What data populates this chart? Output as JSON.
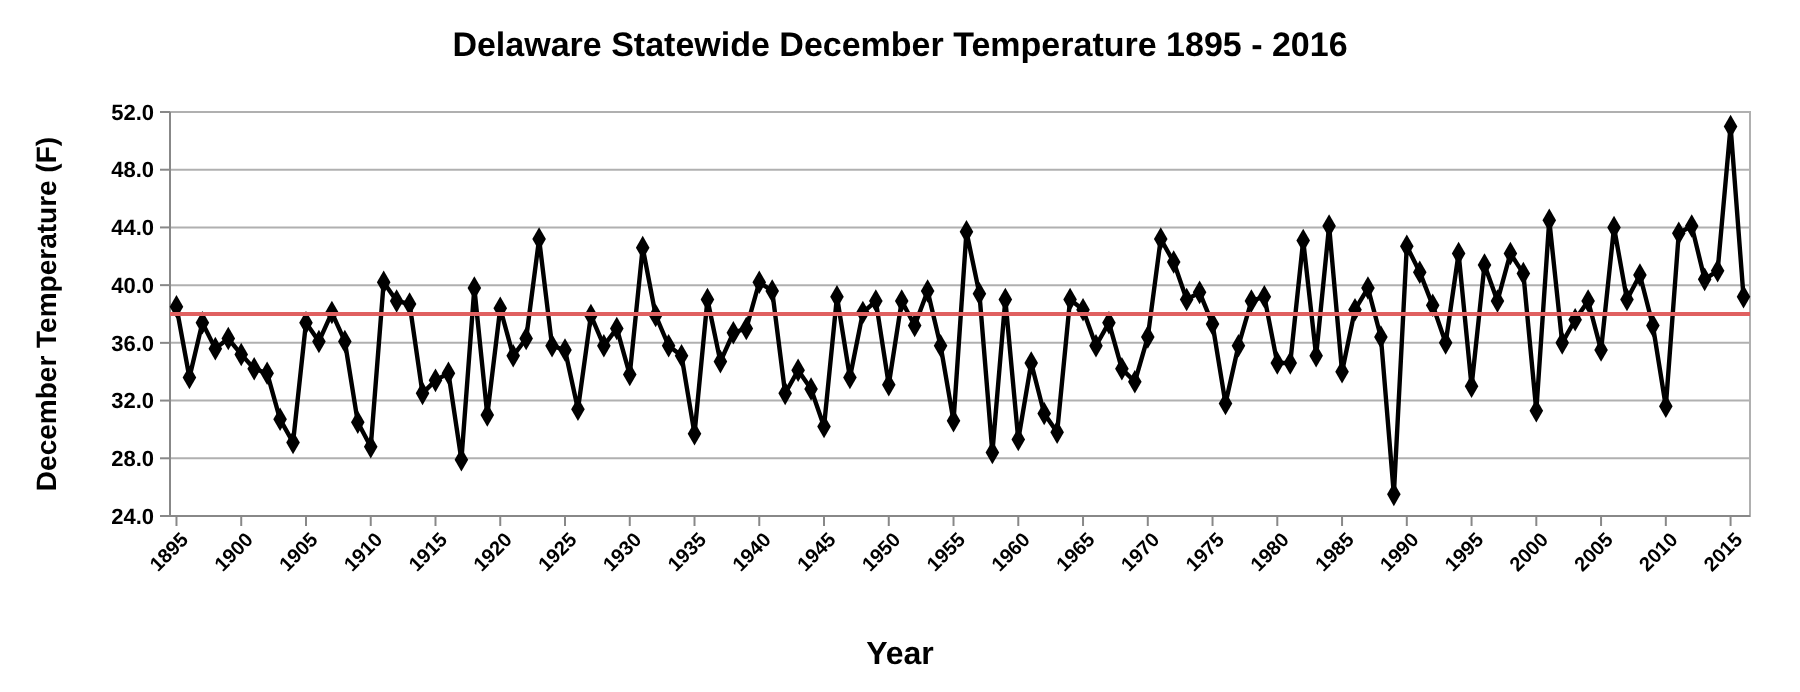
{
  "chart_data": {
    "type": "line",
    "title": "Delaware Statewide December Temperature 1895 - 2016",
    "xlabel": "Year",
    "ylabel": "December Temperature (F)",
    "x": [
      1895,
      1896,
      1897,
      1898,
      1899,
      1900,
      1901,
      1902,
      1903,
      1904,
      1905,
      1906,
      1907,
      1908,
      1909,
      1910,
      1911,
      1912,
      1913,
      1914,
      1915,
      1916,
      1917,
      1918,
      1919,
      1920,
      1921,
      1922,
      1923,
      1924,
      1925,
      1926,
      1927,
      1928,
      1929,
      1930,
      1931,
      1932,
      1933,
      1934,
      1935,
      1936,
      1937,
      1938,
      1939,
      1940,
      1941,
      1942,
      1943,
      1944,
      1945,
      1946,
      1947,
      1948,
      1949,
      1950,
      1951,
      1952,
      1953,
      1954,
      1955,
      1956,
      1957,
      1958,
      1959,
      1960,
      1961,
      1962,
      1963,
      1964,
      1965,
      1966,
      1967,
      1968,
      1969,
      1970,
      1971,
      1972,
      1973,
      1974,
      1975,
      1976,
      1977,
      1978,
      1979,
      1980,
      1981,
      1982,
      1983,
      1984,
      1985,
      1986,
      1987,
      1988,
      1989,
      1990,
      1991,
      1992,
      1993,
      1994,
      1995,
      1996,
      1997,
      1998,
      1999,
      2000,
      2001,
      2002,
      2003,
      2004,
      2005,
      2006,
      2007,
      2008,
      2009,
      2010,
      2011,
      2012,
      2013,
      2014,
      2015,
      2016
    ],
    "series": [
      {
        "color": "#000000",
        "values": [
          38.5,
          33.6,
          37.4,
          35.6,
          36.3,
          35.2,
          34.2,
          33.9,
          30.7,
          29.1,
          37.4,
          36.1,
          38.1,
          36.1,
          30.5,
          28.8,
          40.2,
          38.9,
          38.7,
          32.5,
          33.4,
          33.9,
          27.9,
          39.8,
          31.0,
          38.4,
          35.1,
          36.3,
          43.2,
          35.8,
          35.5,
          31.4,
          37.9,
          35.8,
          37.0,
          33.8,
          42.6,
          37.9,
          35.8,
          35.1,
          29.7,
          39.0,
          34.7,
          36.7,
          37.0,
          40.2,
          39.6,
          32.5,
          34.1,
          32.8,
          30.2,
          39.2,
          33.6,
          38.1,
          38.9,
          33.1,
          38.9,
          37.2,
          39.6,
          35.8,
          30.6,
          43.7,
          39.4,
          28.4,
          39.0,
          29.3,
          34.6,
          31.1,
          29.8,
          39.0,
          38.3,
          35.8,
          37.4,
          34.2,
          33.3,
          36.4,
          43.2,
          41.6,
          39.0,
          39.5,
          37.3,
          31.8,
          35.8,
          38.9,
          39.2,
          34.6,
          34.6,
          43.1,
          35.1,
          44.1,
          34.0,
          38.3,
          39.8,
          36.4,
          25.5,
          42.7,
          40.9,
          38.6,
          36.0,
          42.2,
          33.0,
          41.4,
          38.9,
          42.2,
          40.8,
          31.3,
          44.5,
          36.0,
          37.6,
          38.9,
          35.5,
          44.0,
          39.0,
          40.7,
          37.2,
          31.6,
          43.6,
          44.1,
          40.4,
          41.0,
          51.0,
          39.2
        ]
      }
    ],
    "xlim": [
      1894.5,
      2016.5
    ],
    "xticks": [
      1895,
      1900,
      1905,
      1910,
      1915,
      1920,
      1925,
      1930,
      1935,
      1940,
      1945,
      1950,
      1955,
      1960,
      1965,
      1970,
      1975,
      1980,
      1985,
      1990,
      1995,
      2000,
      2005,
      2010,
      2015
    ],
    "ylim": [
      24,
      52
    ],
    "yticks": [
      {
        "value": 24,
        "label": "24.0"
      },
      {
        "value": 28,
        "label": "28.0"
      },
      {
        "value": 32,
        "label": "32.0"
      },
      {
        "value": 36,
        "label": "36.0"
      },
      {
        "value": 40,
        "label": "40.0"
      },
      {
        "value": 44,
        "label": "44.0"
      },
      {
        "value": 48,
        "label": "48.0"
      },
      {
        "value": 52,
        "label": "52.0"
      }
    ],
    "ref_lines": [
      {
        "axis": "y",
        "value": 38.0,
        "color": "#e06060"
      }
    ],
    "grid": "y",
    "marker": "diamond",
    "line_style": "solid"
  }
}
